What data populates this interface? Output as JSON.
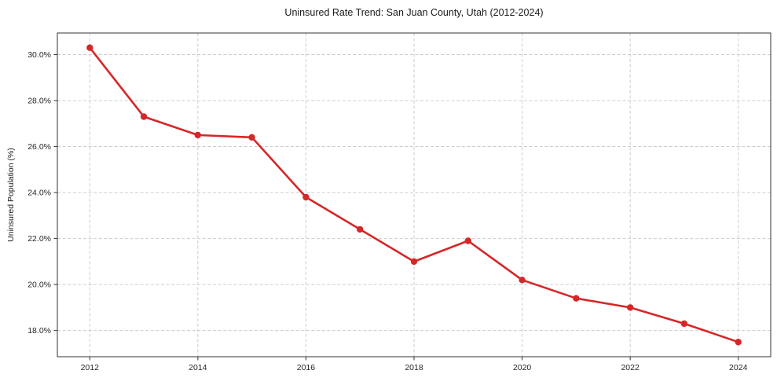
{
  "chart_data": {
    "type": "line",
    "title": "Uninsured Rate Trend: San Juan County, Utah (2012-2024)",
    "xlabel": "",
    "ylabel": "Uninsured Population (%)",
    "series": [
      {
        "x": [
          2012,
          2013,
          2014,
          2015,
          2016,
          2017,
          2018,
          2019,
          2020,
          2021,
          2022,
          2023,
          2024
        ],
        "y": [
          30.3,
          27.3,
          26.5,
          26.4,
          23.8,
          22.4,
          21.0,
          21.9,
          20.2,
          19.4,
          19.0,
          18.3,
          17.5
        ],
        "color": "#d62728",
        "marker": "circle"
      }
    ],
    "xlim": [
      2011.4,
      2024.6
    ],
    "ylim": [
      16.86,
      30.94
    ],
    "xticks": [
      2012,
      2014,
      2016,
      2018,
      2020,
      2022,
      2024
    ],
    "xtick_labels": [
      "2012",
      "2014",
      "2016",
      "2018",
      "2020",
      "2022",
      "2024"
    ],
    "yticks": [
      18,
      20,
      22,
      24,
      26,
      28,
      30
    ],
    "ytick_labels": [
      "18.0%",
      "20.0%",
      "22.0%",
      "24.0%",
      "26.0%",
      "28.0%",
      "30.0%"
    ],
    "grid": true,
    "grid_style": "dashed",
    "legend": "none",
    "colors": {
      "line": "#d62728",
      "grid": "#cccccc",
      "spine": "#333333",
      "tick_label": "#262626",
      "title": "#1a1a1a",
      "background": "#ffffff"
    }
  }
}
